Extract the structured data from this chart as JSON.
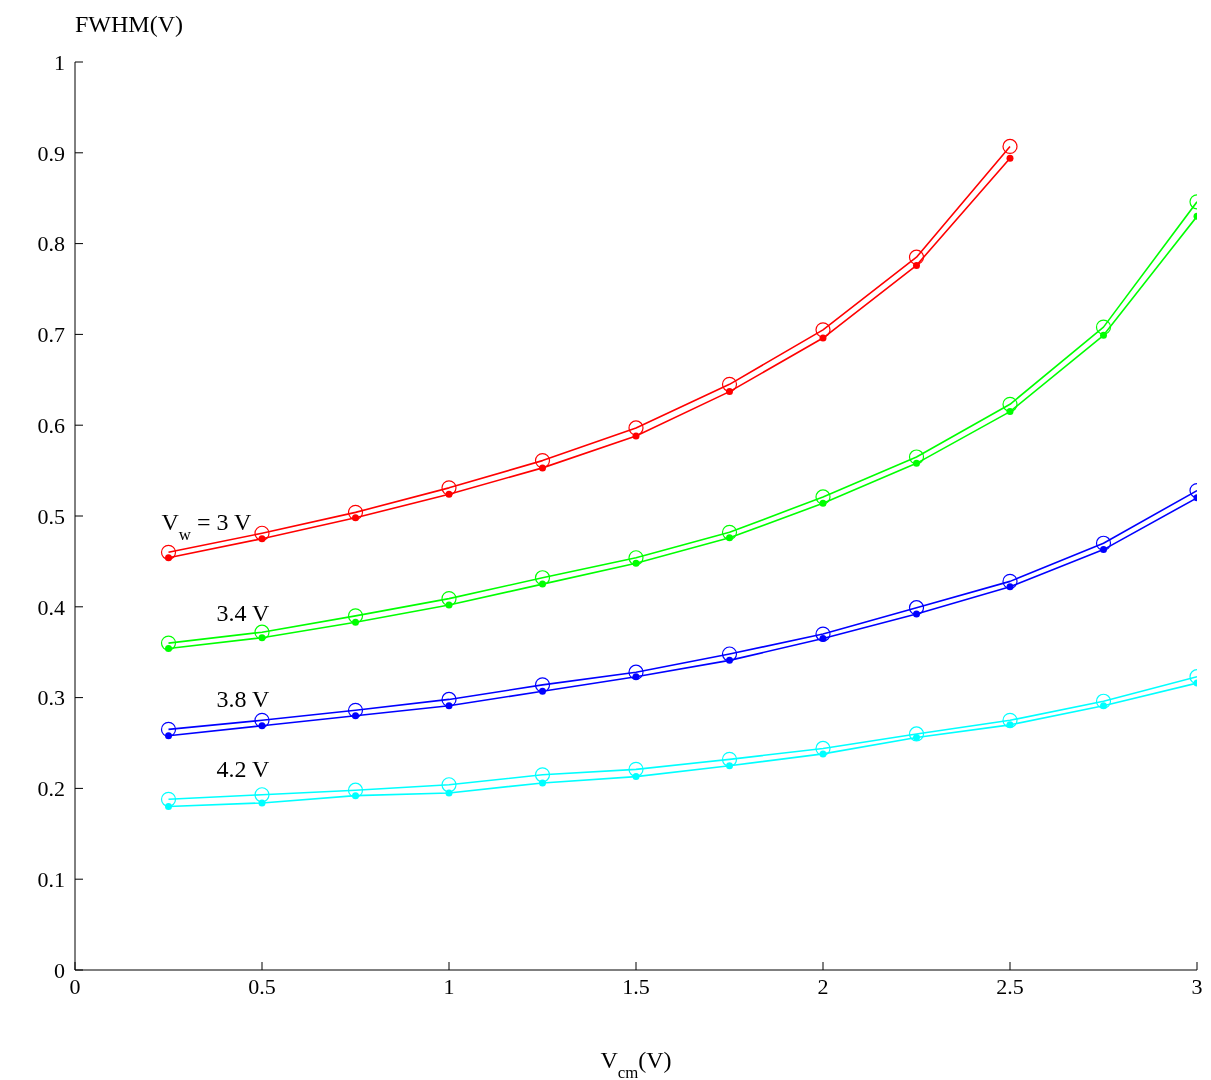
{
  "chart_data": {
    "type": "line",
    "xlabel": "V$_{cm}$(V)",
    "ylabel": "FWHM(V)",
    "x": [
      0.25,
      0.5,
      0.75,
      1,
      1.25,
      1.5,
      1.75,
      2,
      2.25,
      2.5,
      2.75,
      3
    ],
    "xlim": [
      0,
      3
    ],
    "xticks": [
      0,
      0.5,
      1,
      1.5,
      2,
      2.5,
      3
    ],
    "ylim": [
      0,
      1
    ],
    "yticks": [
      0,
      0.1,
      0.2,
      0.3,
      0.4,
      0.5,
      0.6,
      0.7,
      0.8,
      0.9,
      1
    ],
    "marker": "circle",
    "series": [
      {
        "color": "#ff0000",
        "values": [
          0.46,
          0.481,
          0.504,
          0.531,
          0.561,
          0.597,
          0.645,
          0.705,
          0.785,
          0.907,
          null,
          null
        ]
      },
      {
        "color": "#ff0000",
        "values": [
          0.454,
          0.475,
          0.498,
          0.524,
          0.553,
          0.588,
          0.637,
          0.696,
          0.776,
          0.894,
          null,
          null
        ]
      },
      {
        "color": "#00ff00",
        "values": [
          0.36,
          0.372,
          0.39,
          0.409,
          0.432,
          0.454,
          0.482,
          0.521,
          0.565,
          0.623,
          0.708,
          0.846
        ]
      },
      {
        "color": "#00ff00",
        "values": [
          0.354,
          0.366,
          0.383,
          0.402,
          0.425,
          0.448,
          0.476,
          0.514,
          0.558,
          0.615,
          0.699,
          0.83
        ]
      },
      {
        "color": "#0000ff",
        "values": [
          0.265,
          0.275,
          0.286,
          0.298,
          0.314,
          0.328,
          0.348,
          0.37,
          0.399,
          0.428,
          0.47,
          0.528
        ]
      },
      {
        "color": "#0000ff",
        "values": [
          0.258,
          0.269,
          0.28,
          0.291,
          0.307,
          0.323,
          0.341,
          0.365,
          0.392,
          0.422,
          0.463,
          0.52
        ]
      },
      {
        "color": "#00ffff",
        "values": [
          0.188,
          0.193,
          0.198,
          0.204,
          0.215,
          0.221,
          0.232,
          0.244,
          0.26,
          0.275,
          0.296,
          0.323
        ]
      },
      {
        "color": "#00ffff",
        "values": [
          0.18,
          0.184,
          0.192,
          0.195,
          0.206,
          0.213,
          0.225,
          0.238,
          0.256,
          0.27,
          0.291,
          0.316
        ]
      }
    ],
    "annotations": [
      "V$_{w}$ = 3 V",
      "3.4 V",
      "3.8 V",
      "4.2 V"
    ]
  }
}
